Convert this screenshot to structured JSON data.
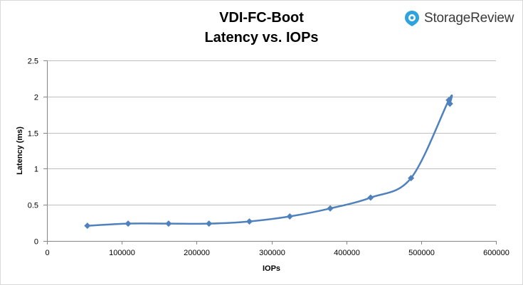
{
  "header": {
    "title_line1": "VDI-FC-Boot",
    "title_line2": "Latency vs. IOPs",
    "brand": "StorageReview",
    "brand_icon": "storagereview-logo-icon"
  },
  "colors": {
    "series": "#4f81bd",
    "grid": "#bfbfbf",
    "axis": "#868686",
    "brand_icon": "#2ea3dd"
  },
  "chart_data": {
    "type": "line",
    "title": "VDI-FC-Boot Latency vs. IOPs",
    "xlabel": "IOPs",
    "ylabel": "Latency (ms)",
    "xlim": [
      0,
      600000
    ],
    "ylim": [
      0,
      2.5
    ],
    "xticks": [
      0,
      100000,
      200000,
      300000,
      400000,
      500000,
      600000
    ],
    "yticks": [
      0,
      0.5,
      1,
      1.5,
      2,
      2.5
    ],
    "xtick_labels": [
      "0",
      "100000",
      "200000",
      "300000",
      "400000",
      "500000",
      "600000"
    ],
    "ytick_labels": [
      "0",
      "0.5",
      "1",
      "1.5",
      "2",
      "2.5"
    ],
    "grid": "horizontal",
    "legend": "none",
    "marker": "diamond",
    "smooth": true,
    "series": [
      {
        "x": [
          54000,
          108500,
          162500,
          216500,
          270500,
          324500,
          378500,
          432500,
          486500,
          537000,
          538500
        ],
        "y": [
          0.21,
          0.24,
          0.24,
          0.24,
          0.27,
          0.34,
          0.45,
          0.6,
          0.87,
          1.95,
          1.9
        ]
      }
    ]
  }
}
